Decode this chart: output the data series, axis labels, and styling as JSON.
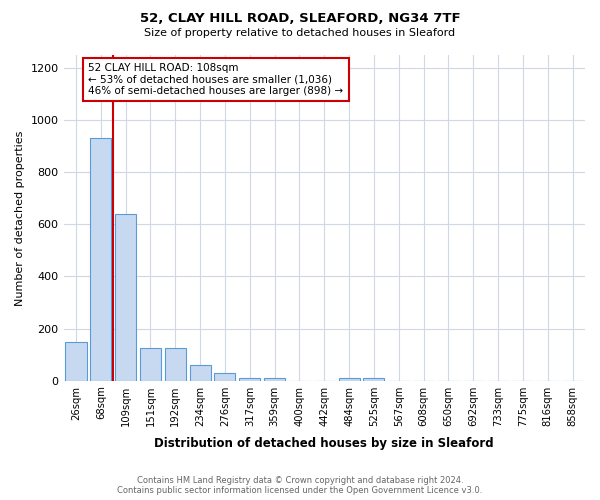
{
  "title1": "52, CLAY HILL ROAD, SLEAFORD, NG34 7TF",
  "title2": "Size of property relative to detached houses in Sleaford",
  "xlabel": "Distribution of detached houses by size in Sleaford",
  "ylabel": "Number of detached properties",
  "categories": [
    "26sqm",
    "68sqm",
    "109sqm",
    "151sqm",
    "192sqm",
    "234sqm",
    "276sqm",
    "317sqm",
    "359sqm",
    "400sqm",
    "442sqm",
    "484sqm",
    "525sqm",
    "567sqm",
    "608sqm",
    "650sqm",
    "692sqm",
    "733sqm",
    "775sqm",
    "816sqm",
    "858sqm"
  ],
  "values": [
    150,
    930,
    640,
    125,
    125,
    60,
    30,
    10,
    10,
    0,
    0,
    10,
    10,
    0,
    0,
    0,
    0,
    0,
    0,
    0,
    0
  ],
  "bar_color": "#c6d9f0",
  "bar_edge_color": "#5b9bd5",
  "red_line_x": 1.5,
  "red_line_color": "#cc0000",
  "ylim": [
    0,
    1250
  ],
  "yticks": [
    0,
    200,
    400,
    600,
    800,
    1000,
    1200
  ],
  "annotation_text": "52 CLAY HILL ROAD: 108sqm\n← 53% of detached houses are smaller (1,036)\n46% of semi-detached houses are larger (898) →",
  "annotation_box_color": "#cc0000",
  "footer1": "Contains HM Land Registry data © Crown copyright and database right 2024.",
  "footer2": "Contains public sector information licensed under the Open Government Licence v3.0.",
  "background_color": "#ffffff",
  "grid_color": "#d0d8e8"
}
